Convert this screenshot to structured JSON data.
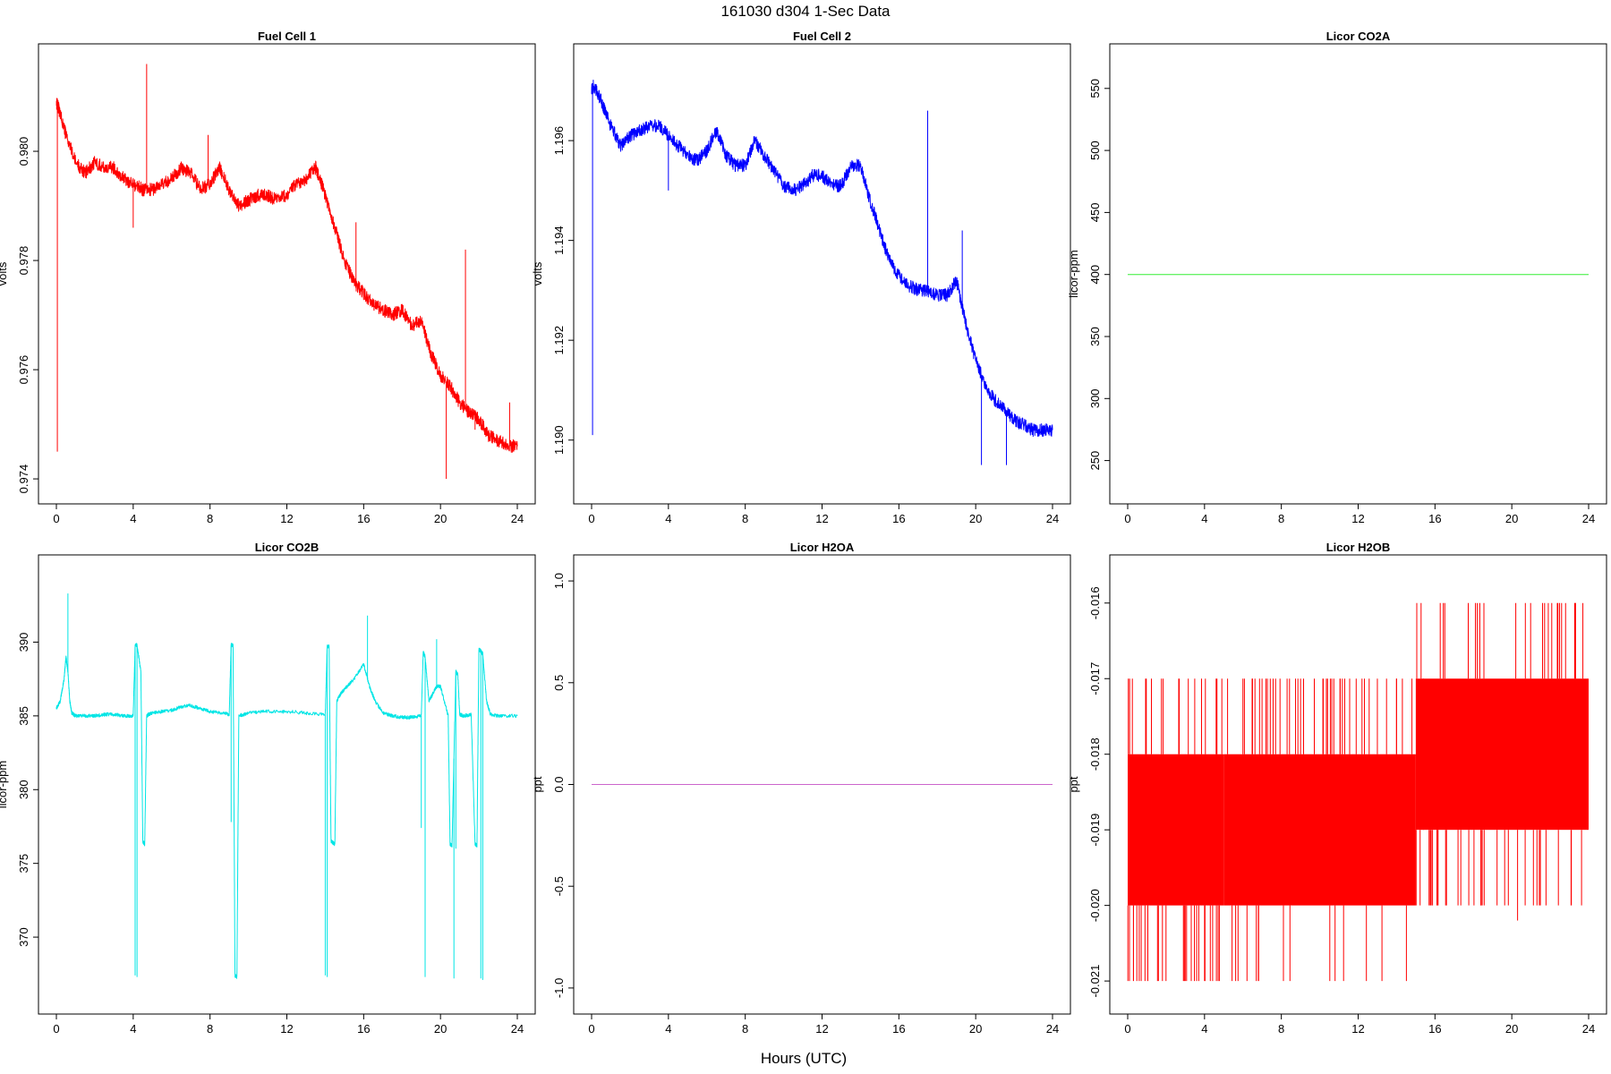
{
  "figure": {
    "title": "161030   d304   1-Sec Data",
    "xlabel": "Hours (UTC)"
  },
  "chart_data": [
    {
      "type": "line",
      "title": "Fuel Cell 1",
      "ylabel": "volts",
      "color": "#ff0000",
      "xlim": [
        0,
        24
      ],
      "ylim": [
        0.97387,
        0.98164
      ],
      "xticks": [
        0,
        4,
        8,
        12,
        16,
        20,
        24
      ],
      "yticks": [
        0.974,
        0.976,
        0.978,
        0.98
      ],
      "ytick_labels": [
        "0.974",
        "0.976",
        "0.978",
        "0.980"
      ],
      "noise": 0.00012,
      "x": [
        0,
        0.1,
        0.5,
        1,
        1.5,
        2,
        2.5,
        3,
        3.5,
        4,
        4.5,
        5,
        5.5,
        6,
        6.5,
        7,
        7.5,
        8,
        8.5,
        9,
        9.5,
        10,
        10.5,
        11,
        11.5,
        12,
        12.5,
        13,
        13.5,
        14,
        14.5,
        15,
        15.5,
        16,
        16.5,
        17,
        17.5,
        18,
        18.5,
        19,
        19.5,
        20,
        20.5,
        21,
        21.5,
        22,
        22.5,
        23,
        23.5,
        24
      ],
      "values": [
        0.9809,
        0.9808,
        0.9803,
        0.9798,
        0.9796,
        0.9798,
        0.9797,
        0.9797,
        0.9795,
        0.9794,
        0.9793,
        0.9793,
        0.9794,
        0.9795,
        0.9797,
        0.9796,
        0.9793,
        0.9794,
        0.9797,
        0.9793,
        0.979,
        0.9791,
        0.9792,
        0.9792,
        0.9791,
        0.9792,
        0.9794,
        0.9795,
        0.9797,
        0.9792,
        0.9786,
        0.978,
        0.9776,
        0.9774,
        0.9772,
        0.9771,
        0.977,
        0.9771,
        0.9768,
        0.9769,
        0.9763,
        0.9759,
        0.9757,
        0.9754,
        0.9752,
        0.9751,
        0.9748,
        0.9747,
        0.9746,
        0.9746
      ],
      "spikes": [
        [
          0.05,
          0.9745
        ],
        [
          4.0,
          0.9786
        ],
        [
          4.7,
          0.9816
        ],
        [
          7.9,
          0.9803
        ],
        [
          15.6,
          0.9787
        ],
        [
          20.3,
          0.974
        ],
        [
          21.3,
          0.9782
        ],
        [
          21.8,
          0.9749
        ],
        [
          23.6,
          0.9754
        ]
      ]
    },
    {
      "type": "line",
      "title": "Fuel Cell 2",
      "ylabel": "volts",
      "color": "#0000ff",
      "xlim": [
        0,
        24
      ],
      "ylim": [
        1.18908,
        1.19758
      ],
      "xticks": [
        0,
        4,
        8,
        12,
        16,
        20,
        24
      ],
      "yticks": [
        1.19,
        1.192,
        1.194,
        1.196
      ],
      "ytick_labels": [
        "1.190",
        "1.192",
        "1.194",
        "1.196"
      ],
      "noise": 0.00013,
      "x": [
        0,
        0.1,
        0.5,
        1,
        1.5,
        2,
        2.5,
        3,
        3.5,
        4,
        4.5,
        5,
        5.5,
        6,
        6.5,
        7,
        7.5,
        8,
        8.5,
        9,
        9.5,
        10,
        10.5,
        11,
        11.5,
        12,
        12.5,
        13,
        13.5,
        14,
        14.5,
        15,
        15.5,
        16,
        16.5,
        17,
        17.5,
        18,
        18.5,
        19,
        19.5,
        20,
        20.5,
        21,
        21.5,
        22,
        22.5,
        23,
        23.5,
        24
      ],
      "values": [
        1.197,
        1.1971,
        1.1968,
        1.1963,
        1.1959,
        1.1961,
        1.1962,
        1.1963,
        1.1963,
        1.1961,
        1.1959,
        1.1957,
        1.1956,
        1.1958,
        1.1962,
        1.1957,
        1.1955,
        1.1955,
        1.196,
        1.1957,
        1.1954,
        1.1951,
        1.195,
        1.1951,
        1.1953,
        1.1953,
        1.1951,
        1.1951,
        1.1955,
        1.1955,
        1.1948,
        1.1942,
        1.1936,
        1.1933,
        1.1931,
        1.193,
        1.193,
        1.1929,
        1.1929,
        1.1932,
        1.1923,
        1.1916,
        1.1911,
        1.1908,
        1.1906,
        1.1904,
        1.1903,
        1.1902,
        1.1902,
        1.1902
      ],
      "spikes": [
        [
          0.05,
          1.1901
        ],
        [
          4.0,
          1.195
        ],
        [
          17.5,
          1.1966
        ],
        [
          19.3,
          1.1942
        ],
        [
          20.3,
          1.1895
        ],
        [
          21.6,
          1.1895
        ]
      ]
    },
    {
      "type": "line",
      "title": "Licor CO2A",
      "ylabel": "licor-ppm",
      "color": "#33ee33",
      "xlim": [
        0,
        24
      ],
      "ylim": [
        229.5,
        571.5
      ],
      "xticks": [
        0,
        4,
        8,
        12,
        16,
        20,
        24
      ],
      "yticks": [
        250,
        300,
        350,
        400,
        450,
        500,
        550
      ],
      "ytick_labels": [
        "250",
        "300",
        "350",
        "400",
        "450",
        "500",
        "550"
      ],
      "x": [
        0,
        24
      ],
      "values": [
        400,
        400
      ]
    },
    {
      "type": "line",
      "title": "Licor CO2B",
      "ylabel": "licor-ppm",
      "color": "#00e5e5",
      "xlim": [
        0,
        24
      ],
      "ylim": [
        366.0,
        394.7
      ],
      "xticks": [
        0,
        4,
        8,
        12,
        16,
        20,
        24
      ],
      "yticks": [
        370,
        375,
        380,
        385,
        390
      ],
      "ytick_labels": [
        "370",
        "375",
        "380",
        "385",
        "390"
      ],
      "noise": 0.12,
      "x": [
        0,
        0.2,
        0.4,
        0.5,
        0.6,
        0.7,
        0.8,
        1.0,
        1.5,
        2,
        2.5,
        3,
        3.5,
        4.0,
        4.1,
        4.2,
        4.4,
        4.5,
        4.6,
        4.7,
        4.8,
        5,
        5.5,
        6,
        6.5,
        7,
        7.5,
        8,
        8.5,
        9.0,
        9.1,
        9.2,
        9.3,
        9.4,
        9.5,
        10,
        11,
        12,
        13,
        14,
        14.1,
        14.2,
        14.3,
        14.5,
        14.6,
        14.8,
        15,
        15.5,
        16,
        16.3,
        16.6,
        17,
        17.5,
        18,
        18.5,
        19,
        19.1,
        19.2,
        19.4,
        19.6,
        19.8,
        20,
        20.4,
        20.5,
        20.6,
        20.8,
        20.9,
        21.0,
        21.2,
        21.6,
        21.8,
        21.9,
        22.0,
        22.1,
        22.2,
        22.4,
        22.6,
        23,
        24
      ],
      "values": [
        385.5,
        386.0,
        387.5,
        389.0,
        388.0,
        386.0,
        385.2,
        385.0,
        385.0,
        385.0,
        385.1,
        385.1,
        385.0,
        385.0,
        389.8,
        389.8,
        388.0,
        376.5,
        376.3,
        385.0,
        385.1,
        385.2,
        385.3,
        385.4,
        385.6,
        385.7,
        385.5,
        385.3,
        385.2,
        385.1,
        389.8,
        389.8,
        367.4,
        367.3,
        385.0,
        385.2,
        385.3,
        385.3,
        385.2,
        385.1,
        389.7,
        389.7,
        376.5,
        376.3,
        386.0,
        386.5,
        386.8,
        387.5,
        388.5,
        387.0,
        386.0,
        385.2,
        385.0,
        384.9,
        384.9,
        385.0,
        389.3,
        389.0,
        386.0,
        386.5,
        387.0,
        387.0,
        385.0,
        376.3,
        376.2,
        388.0,
        387.8,
        385.1,
        385.0,
        385.1,
        376.3,
        376.2,
        389.5,
        389.4,
        389.2,
        386.0,
        385.1,
        385.0,
        385.0
      ],
      "spikes": [
        [
          0.6,
          393.3
        ],
        [
          4.1,
          367.4
        ],
        [
          4.2,
          367.3
        ],
        [
          9.1,
          377.8
        ],
        [
          14.0,
          367.4
        ],
        [
          14.1,
          367.3
        ],
        [
          16.2,
          391.8
        ],
        [
          19.0,
          377.4
        ],
        [
          19.2,
          367.3
        ],
        [
          19.8,
          390.2
        ],
        [
          20.7,
          367.2
        ],
        [
          20.8,
          376.0
        ],
        [
          22.1,
          367.2
        ],
        [
          22.2,
          367.1
        ]
      ]
    },
    {
      "type": "line",
      "title": "Licor H2OA",
      "ylabel": "ppt",
      "color": "#cc66cc",
      "xlim": [
        0,
        24
      ],
      "ylim": [
        -1.04,
        1.04
      ],
      "xticks": [
        0,
        4,
        8,
        12,
        16,
        20,
        24
      ],
      "yticks": [
        -1.0,
        -0.5,
        0.0,
        0.5,
        1.0
      ],
      "ytick_labels": [
        "-1.0",
        "-0.5",
        "0.0",
        "0.5",
        "1.0"
      ],
      "x": [
        0,
        24
      ],
      "values": [
        0.0,
        0.0
      ]
    },
    {
      "type": "line",
      "title": "Licor H2OB",
      "ylabel": "ppt",
      "color": "#ff0000",
      "xlim": [
        0,
        24
      ],
      "ylim": [
        -0.0212,
        -0.0156
      ],
      "xticks": [
        0,
        4,
        8,
        12,
        16,
        20,
        24
      ],
      "yticks": [
        -0.021,
        -0.02,
        -0.019,
        -0.018,
        -0.017,
        -0.016
      ],
      "ytick_labels": [
        "-0.021",
        "-0.020",
        "-0.019",
        "-0.018",
        "-0.017",
        "-0.016"
      ],
      "bands": [
        {
          "x0": 0,
          "x1": 5,
          "y0": -0.02,
          "y1": -0.018
        },
        {
          "x0": 5,
          "x1": 15,
          "y0": -0.02,
          "y1": -0.018
        },
        {
          "x0": 15,
          "x1": 24,
          "y0": -0.019,
          "y1": -0.017
        }
      ],
      "spikes": [
        [
          0.1,
          -0.017
        ],
        [
          0.6,
          -0.021
        ],
        [
          0.9,
          -0.021
        ],
        [
          1.6,
          -0.021
        ],
        [
          2.9,
          -0.021
        ],
        [
          4.0,
          -0.021
        ],
        [
          5.2,
          -0.017
        ],
        [
          6.0,
          -0.017
        ],
        [
          6.5,
          -0.017
        ],
        [
          7.2,
          -0.017
        ],
        [
          7.7,
          -0.017
        ],
        [
          8.3,
          -0.017
        ],
        [
          9.0,
          -0.017
        ],
        [
          11.3,
          -0.017
        ],
        [
          12.2,
          -0.017
        ],
        [
          13.0,
          -0.017
        ],
        [
          14.0,
          -0.017
        ],
        [
          14.8,
          -0.017
        ],
        [
          15.4,
          -0.017
        ],
        [
          16.1,
          -0.02
        ],
        [
          16.6,
          -0.02
        ],
        [
          17.2,
          -0.02
        ],
        [
          18.2,
          -0.016
        ],
        [
          18.4,
          -0.02
        ],
        [
          20.3,
          -0.0202
        ],
        [
          21.6,
          -0.016
        ],
        [
          21.9,
          -0.016
        ],
        [
          22.4,
          -0.016
        ],
        [
          22.8,
          -0.016
        ],
        [
          23.3,
          -0.016
        ],
        [
          23.7,
          -0.016
        ]
      ]
    }
  ]
}
